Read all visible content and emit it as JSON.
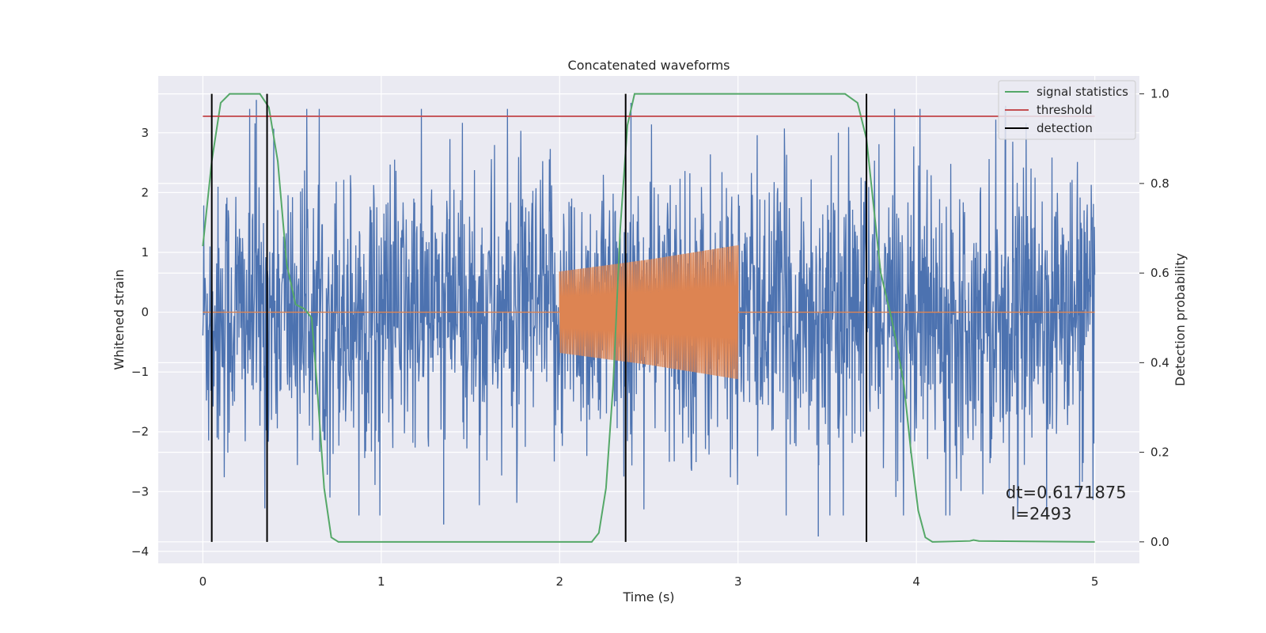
{
  "chart_data": {
    "type": "line",
    "title": "Concatenated waveforms",
    "xlabel": "Time (s)",
    "ylabel": "Whitened strain",
    "y2label": "Detection probability",
    "xlim": [
      -0.25,
      5.25
    ],
    "ylim": [
      -4.2,
      3.95
    ],
    "y2lim": [
      -0.048,
      1.04
    ],
    "xticks": [
      0,
      1,
      2,
      3,
      4,
      5
    ],
    "yticks": [
      -4,
      -3,
      -2,
      -1,
      0,
      1,
      2,
      3
    ],
    "y2ticks": [
      0.0,
      0.2,
      0.4,
      0.6,
      0.8,
      1.0
    ],
    "y2tick_labels": [
      "0.0",
      "0.2",
      "0.4",
      "0.6",
      "0.8",
      "1.0"
    ],
    "grid": true,
    "legend_position": "top-right",
    "colors": {
      "background": "#eaeaf2",
      "noise": "#4c72b0",
      "injection": "#dd8452",
      "signal_statistics": "#55a868",
      "threshold": "#c44e52",
      "detection": "#000000",
      "grid": "#ffffff"
    },
    "series": [
      {
        "role": "noise",
        "axis": "left",
        "description": "whitened noise strain, 0 to 5 s",
        "x_range": [
          0,
          5
        ],
        "typical_amplitude": 1.0,
        "peak_values": [
          3.55,
          -3.55,
          3.5,
          -3.75,
          3.45
        ]
      },
      {
        "role": "injection",
        "axis": "left",
        "description": "chirp injection, zero elsewhere",
        "x_range": [
          2,
          3
        ],
        "envelope": [
          [
            2.0,
            0.68
          ],
          [
            2.5,
            0.88
          ],
          [
            3.0,
            1.12
          ]
        ]
      },
      {
        "name": "signal statistics",
        "axis": "right",
        "points": [
          [
            0.0,
            0.66
          ],
          [
            0.05,
            0.85
          ],
          [
            0.1,
            0.98
          ],
          [
            0.15,
            1.0
          ],
          [
            0.32,
            1.0
          ],
          [
            0.37,
            0.97
          ],
          [
            0.42,
            0.85
          ],
          [
            0.47,
            0.62
          ],
          [
            0.52,
            0.53
          ],
          [
            0.57,
            0.52
          ],
          [
            0.61,
            0.5
          ],
          [
            0.64,
            0.35
          ],
          [
            0.68,
            0.12
          ],
          [
            0.72,
            0.01
          ],
          [
            0.76,
            0.0
          ],
          [
            2.18,
            0.0
          ],
          [
            2.22,
            0.02
          ],
          [
            2.26,
            0.12
          ],
          [
            2.3,
            0.35
          ],
          [
            2.34,
            0.7
          ],
          [
            2.38,
            0.93
          ],
          [
            2.42,
            1.0
          ],
          [
            3.6,
            1.0
          ],
          [
            3.67,
            0.98
          ],
          [
            3.72,
            0.9
          ],
          [
            3.76,
            0.75
          ],
          [
            3.8,
            0.6
          ],
          [
            3.86,
            0.5
          ],
          [
            3.9,
            0.42
          ],
          [
            3.93,
            0.35
          ],
          [
            3.97,
            0.2
          ],
          [
            4.01,
            0.07
          ],
          [
            4.05,
            0.01
          ],
          [
            4.09,
            0.0
          ],
          [
            4.3,
            0.002
          ],
          [
            4.32,
            0.004
          ],
          [
            4.35,
            0.002
          ],
          [
            5.0,
            0.0
          ]
        ]
      },
      {
        "name": "threshold",
        "axis": "right",
        "points": [
          [
            0.0,
            0.95
          ],
          [
            5.0,
            0.95
          ]
        ]
      },
      {
        "name": "detection",
        "axis": "right",
        "vlines_x": [
          0.05,
          0.36,
          2.37,
          3.72
        ],
        "vline_range": [
          0.0,
          1.0
        ]
      }
    ],
    "legend": [
      "signal statistics",
      "threshold",
      "detection"
    ],
    "annotation": {
      "line1": "dt=0.6171875",
      "line2": " l=2493",
      "x": 4.5,
      "y": -3.0
    }
  }
}
